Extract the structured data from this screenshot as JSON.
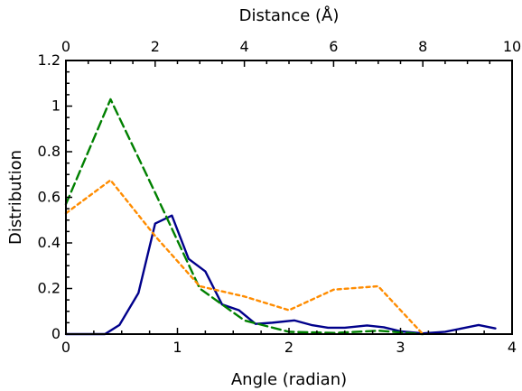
{
  "chart_data": {
    "type": "line",
    "xlabel": "Angle (radian)",
    "x2label": "Distance (Å)",
    "ylabel": "Distribution",
    "xlim": [
      0,
      4
    ],
    "x2lim": [
      0,
      10
    ],
    "ylim": [
      0,
      1.2
    ],
    "x_ticks": [
      0,
      1,
      2,
      3,
      4
    ],
    "x2_ticks": [
      0,
      2,
      4,
      6,
      8,
      10
    ],
    "y_ticks": [
      0,
      0.2,
      0.4,
      0.6,
      0.8,
      1,
      1.2
    ],
    "x_tick_labels": [
      "0",
      "1",
      "2",
      "3",
      "4"
    ],
    "x2_tick_labels": [
      "0",
      "2",
      "4",
      "6",
      "8",
      "10"
    ],
    "y_tick_labels": [
      "0",
      "0.2",
      "0.4",
      "0.6",
      "0.8",
      "1",
      "1.2"
    ],
    "grid": false,
    "series": [
      {
        "axis": "bottom",
        "color": "#00008b",
        "style": "solid",
        "points": [
          [
            0,
            0
          ],
          [
            0.15,
            0
          ],
          [
            0.35,
            0
          ],
          [
            0.48,
            0.04
          ],
          [
            0.65,
            0.18
          ],
          [
            0.8,
            0.485
          ],
          [
            0.95,
            0.52
          ],
          [
            1.1,
            0.33
          ],
          [
            1.25,
            0.275
          ],
          [
            1.4,
            0.13
          ],
          [
            1.55,
            0.105
          ],
          [
            1.7,
            0.045
          ],
          [
            1.85,
            0.05
          ],
          [
            2.05,
            0.06
          ],
          [
            2.2,
            0.04
          ],
          [
            2.35,
            0.028
          ],
          [
            2.5,
            0.028
          ],
          [
            2.7,
            0.038
          ],
          [
            2.85,
            0.03
          ],
          [
            3.0,
            0.012
          ],
          [
            3.2,
            0.003
          ],
          [
            3.4,
            0.01
          ],
          [
            3.55,
            0.025
          ],
          [
            3.7,
            0.04
          ],
          [
            3.85,
            0.025
          ]
        ]
      },
      {
        "axis": "top",
        "color": "#008000",
        "style": "dashed",
        "points": [
          [
            0,
            0.57
          ],
          [
            1.0,
            1.03
          ],
          [
            2.0,
            0.62
          ],
          [
            3.0,
            0.2
          ],
          [
            4.0,
            0.06
          ],
          [
            5.0,
            0.01
          ],
          [
            6.0,
            0.005
          ],
          [
            7.0,
            0.015
          ],
          [
            8.0,
            0
          ]
        ]
      },
      {
        "axis": "top",
        "color": "#ff8c00",
        "style": "dotted",
        "points": [
          [
            0,
            0.53
          ],
          [
            1.0,
            0.675
          ],
          [
            2.0,
            0.43
          ],
          [
            3.0,
            0.21
          ],
          [
            4.0,
            0.165
          ],
          [
            5.0,
            0.105
          ],
          [
            6.0,
            0.195
          ],
          [
            7.0,
            0.21
          ],
          [
            8.0,
            0
          ]
        ]
      }
    ]
  }
}
